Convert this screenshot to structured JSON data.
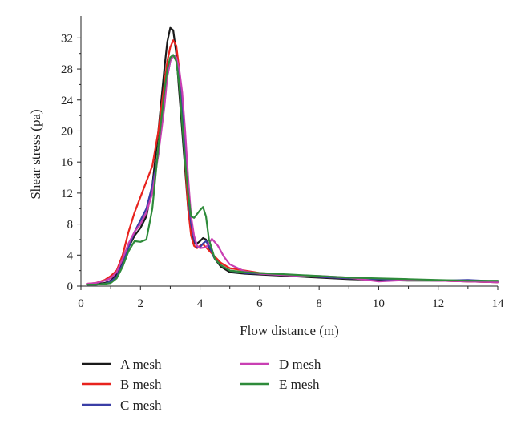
{
  "chart_data": {
    "type": "line",
    "xlabel": "Flow distance (m)",
    "ylabel": "Shear stress (pa)",
    "xlim": [
      0,
      14
    ],
    "ylim": [
      0,
      34
    ],
    "xticks": [
      0,
      2,
      4,
      6,
      8,
      10,
      12,
      14
    ],
    "yticks": [
      0,
      4,
      8,
      12,
      16,
      20,
      24,
      28,
      32
    ],
    "grid": false,
    "legend_position": "bottom",
    "series": [
      {
        "name": "A mesh",
        "color": "#1a1a1a",
        "points": [
          [
            0.2,
            0.3
          ],
          [
            0.5,
            0.3
          ],
          [
            0.8,
            0.4
          ],
          [
            1.0,
            0.7
          ],
          [
            1.2,
            1.5
          ],
          [
            1.4,
            3.0
          ],
          [
            1.6,
            5.0
          ],
          [
            1.8,
            6.5
          ],
          [
            2.0,
            7.5
          ],
          [
            2.2,
            9.0
          ],
          [
            2.4,
            13.0
          ],
          [
            2.6,
            20.0
          ],
          [
            2.8,
            28.0
          ],
          [
            2.9,
            31.5
          ],
          [
            3.0,
            33.3
          ],
          [
            3.1,
            33.0
          ],
          [
            3.2,
            30.0
          ],
          [
            3.3,
            25.0
          ],
          [
            3.4,
            20.0
          ],
          [
            3.5,
            15.0
          ],
          [
            3.6,
            10.0
          ],
          [
            3.7,
            7.0
          ],
          [
            3.8,
            5.5
          ],
          [
            3.9,
            5.5
          ],
          [
            4.0,
            5.8
          ],
          [
            4.1,
            6.2
          ],
          [
            4.2,
            6.0
          ],
          [
            4.3,
            5.0
          ],
          [
            4.5,
            3.5
          ],
          [
            4.7,
            2.5
          ],
          [
            5.0,
            1.8
          ],
          [
            5.5,
            1.6
          ],
          [
            6.0,
            1.5
          ],
          [
            7.0,
            1.3
          ],
          [
            8.0,
            1.1
          ],
          [
            9.0,
            0.9
          ],
          [
            10.0,
            0.8
          ],
          [
            11.0,
            0.7
          ],
          [
            12.0,
            0.7
          ],
          [
            13.0,
            0.6
          ],
          [
            14.0,
            0.5
          ]
        ]
      },
      {
        "name": "B mesh",
        "color": "#e8231e",
        "points": [
          [
            0.2,
            0.3
          ],
          [
            0.5,
            0.4
          ],
          [
            0.8,
            0.8
          ],
          [
            1.0,
            1.3
          ],
          [
            1.2,
            2.0
          ],
          [
            1.4,
            4.0
          ],
          [
            1.6,
            7.0
          ],
          [
            1.8,
            9.5
          ],
          [
            2.0,
            11.5
          ],
          [
            2.2,
            13.5
          ],
          [
            2.4,
            15.5
          ],
          [
            2.6,
            20.0
          ],
          [
            2.8,
            26.0
          ],
          [
            2.9,
            29.0
          ],
          [
            3.0,
            30.8
          ],
          [
            3.1,
            31.7
          ],
          [
            3.2,
            31.0
          ],
          [
            3.3,
            28.0
          ],
          [
            3.4,
            22.0
          ],
          [
            3.5,
            16.0
          ],
          [
            3.6,
            10.0
          ],
          [
            3.7,
            6.5
          ],
          [
            3.8,
            5.2
          ],
          [
            3.9,
            4.9
          ],
          [
            4.0,
            5.2
          ],
          [
            4.1,
            5.4
          ],
          [
            4.2,
            5.0
          ],
          [
            4.3,
            4.6
          ],
          [
            4.5,
            3.8
          ],
          [
            4.7,
            3.0
          ],
          [
            5.0,
            2.3
          ],
          [
            5.5,
            2.0
          ],
          [
            6.0,
            1.7
          ],
          [
            7.0,
            1.4
          ],
          [
            8.0,
            1.2
          ],
          [
            9.0,
            1.0
          ],
          [
            10.0,
            0.9
          ],
          [
            11.0,
            0.8
          ],
          [
            12.0,
            0.7
          ],
          [
            13.0,
            0.6
          ],
          [
            14.0,
            0.5
          ]
        ]
      },
      {
        "name": "C mesh",
        "color": "#3a3ea6",
        "points": [
          [
            0.2,
            0.2
          ],
          [
            0.5,
            0.2
          ],
          [
            0.8,
            0.3
          ],
          [
            1.0,
            0.6
          ],
          [
            1.2,
            1.2
          ],
          [
            1.4,
            2.8
          ],
          [
            1.6,
            5.0
          ],
          [
            1.8,
            7.0
          ],
          [
            2.0,
            8.5
          ],
          [
            2.2,
            10.0
          ],
          [
            2.4,
            13.0
          ],
          [
            2.6,
            17.0
          ],
          [
            2.8,
            24.0
          ],
          [
            2.9,
            27.0
          ],
          [
            3.0,
            29.0
          ],
          [
            3.1,
            29.8
          ],
          [
            3.2,
            29.5
          ],
          [
            3.3,
            27.5
          ],
          [
            3.4,
            23.0
          ],
          [
            3.5,
            18.0
          ],
          [
            3.6,
            12.0
          ],
          [
            3.7,
            8.0
          ],
          [
            3.8,
            6.0
          ],
          [
            3.9,
            5.0
          ],
          [
            4.0,
            5.0
          ],
          [
            4.1,
            5.5
          ],
          [
            4.2,
            5.8
          ],
          [
            4.3,
            5.2
          ],
          [
            4.5,
            3.5
          ],
          [
            4.7,
            2.7
          ],
          [
            5.0,
            2.0
          ],
          [
            5.5,
            1.7
          ],
          [
            6.0,
            1.6
          ],
          [
            7.0,
            1.4
          ],
          [
            8.0,
            1.2
          ],
          [
            9.0,
            1.0
          ],
          [
            10.0,
            0.9
          ],
          [
            11.0,
            0.8
          ],
          [
            12.0,
            0.7
          ],
          [
            13.0,
            0.8
          ],
          [
            13.5,
            0.7
          ],
          [
            14.0,
            0.6
          ]
        ]
      },
      {
        "name": "D mesh",
        "color": "#c93fb3",
        "points": [
          [
            0.2,
            0.3
          ],
          [
            0.5,
            0.4
          ],
          [
            0.8,
            0.7
          ],
          [
            1.0,
            1.0
          ],
          [
            1.2,
            1.8
          ],
          [
            1.4,
            3.5
          ],
          [
            1.6,
            5.5
          ],
          [
            1.8,
            7.0
          ],
          [
            2.0,
            8.0
          ],
          [
            2.2,
            9.5
          ],
          [
            2.4,
            12.0
          ],
          [
            2.6,
            17.0
          ],
          [
            2.8,
            23.0
          ],
          [
            2.9,
            27.0
          ],
          [
            3.0,
            29.0
          ],
          [
            3.1,
            29.7
          ],
          [
            3.2,
            29.5
          ],
          [
            3.3,
            28.0
          ],
          [
            3.4,
            25.0
          ],
          [
            3.5,
            20.0
          ],
          [
            3.6,
            14.0
          ],
          [
            3.7,
            9.0
          ],
          [
            3.8,
            6.5
          ],
          [
            3.9,
            5.2
          ],
          [
            4.0,
            4.9
          ],
          [
            4.2,
            5.0
          ],
          [
            4.4,
            6.1
          ],
          [
            4.6,
            5.2
          ],
          [
            4.8,
            3.8
          ],
          [
            5.0,
            2.8
          ],
          [
            5.5,
            1.9
          ],
          [
            6.0,
            1.6
          ],
          [
            7.0,
            1.4
          ],
          [
            8.0,
            1.3
          ],
          [
            9.0,
            1.1
          ],
          [
            10.0,
            0.6
          ],
          [
            11.0,
            0.8
          ],
          [
            12.0,
            0.7
          ],
          [
            13.0,
            0.6
          ],
          [
            14.0,
            0.5
          ]
        ]
      },
      {
        "name": "E mesh",
        "color": "#2e8b3a",
        "points": [
          [
            0.2,
            0.2
          ],
          [
            0.5,
            0.2
          ],
          [
            0.8,
            0.3
          ],
          [
            1.0,
            0.4
          ],
          [
            1.2,
            1.0
          ],
          [
            1.4,
            2.5
          ],
          [
            1.6,
            4.5
          ],
          [
            1.8,
            5.8
          ],
          [
            2.0,
            5.7
          ],
          [
            2.2,
            6.0
          ],
          [
            2.4,
            10.0
          ],
          [
            2.6,
            18.0
          ],
          [
            2.8,
            25.0
          ],
          [
            2.9,
            28.0
          ],
          [
            3.0,
            29.5
          ],
          [
            3.1,
            29.8
          ],
          [
            3.2,
            29.0
          ],
          [
            3.3,
            26.0
          ],
          [
            3.4,
            21.0
          ],
          [
            3.5,
            16.0
          ],
          [
            3.6,
            12.0
          ],
          [
            3.7,
            9.0
          ],
          [
            3.8,
            8.8
          ],
          [
            3.9,
            9.3
          ],
          [
            4.0,
            9.8
          ],
          [
            4.1,
            10.2
          ],
          [
            4.2,
            9.0
          ],
          [
            4.3,
            6.0
          ],
          [
            4.5,
            3.5
          ],
          [
            4.7,
            2.7
          ],
          [
            5.0,
            2.0
          ],
          [
            5.5,
            1.8
          ],
          [
            6.0,
            1.7
          ],
          [
            7.0,
            1.5
          ],
          [
            8.0,
            1.3
          ],
          [
            9.0,
            1.1
          ],
          [
            10.0,
            1.0
          ],
          [
            11.0,
            0.9
          ],
          [
            12.0,
            0.8
          ],
          [
            13.0,
            0.7
          ],
          [
            14.0,
            0.7
          ]
        ]
      }
    ]
  }
}
